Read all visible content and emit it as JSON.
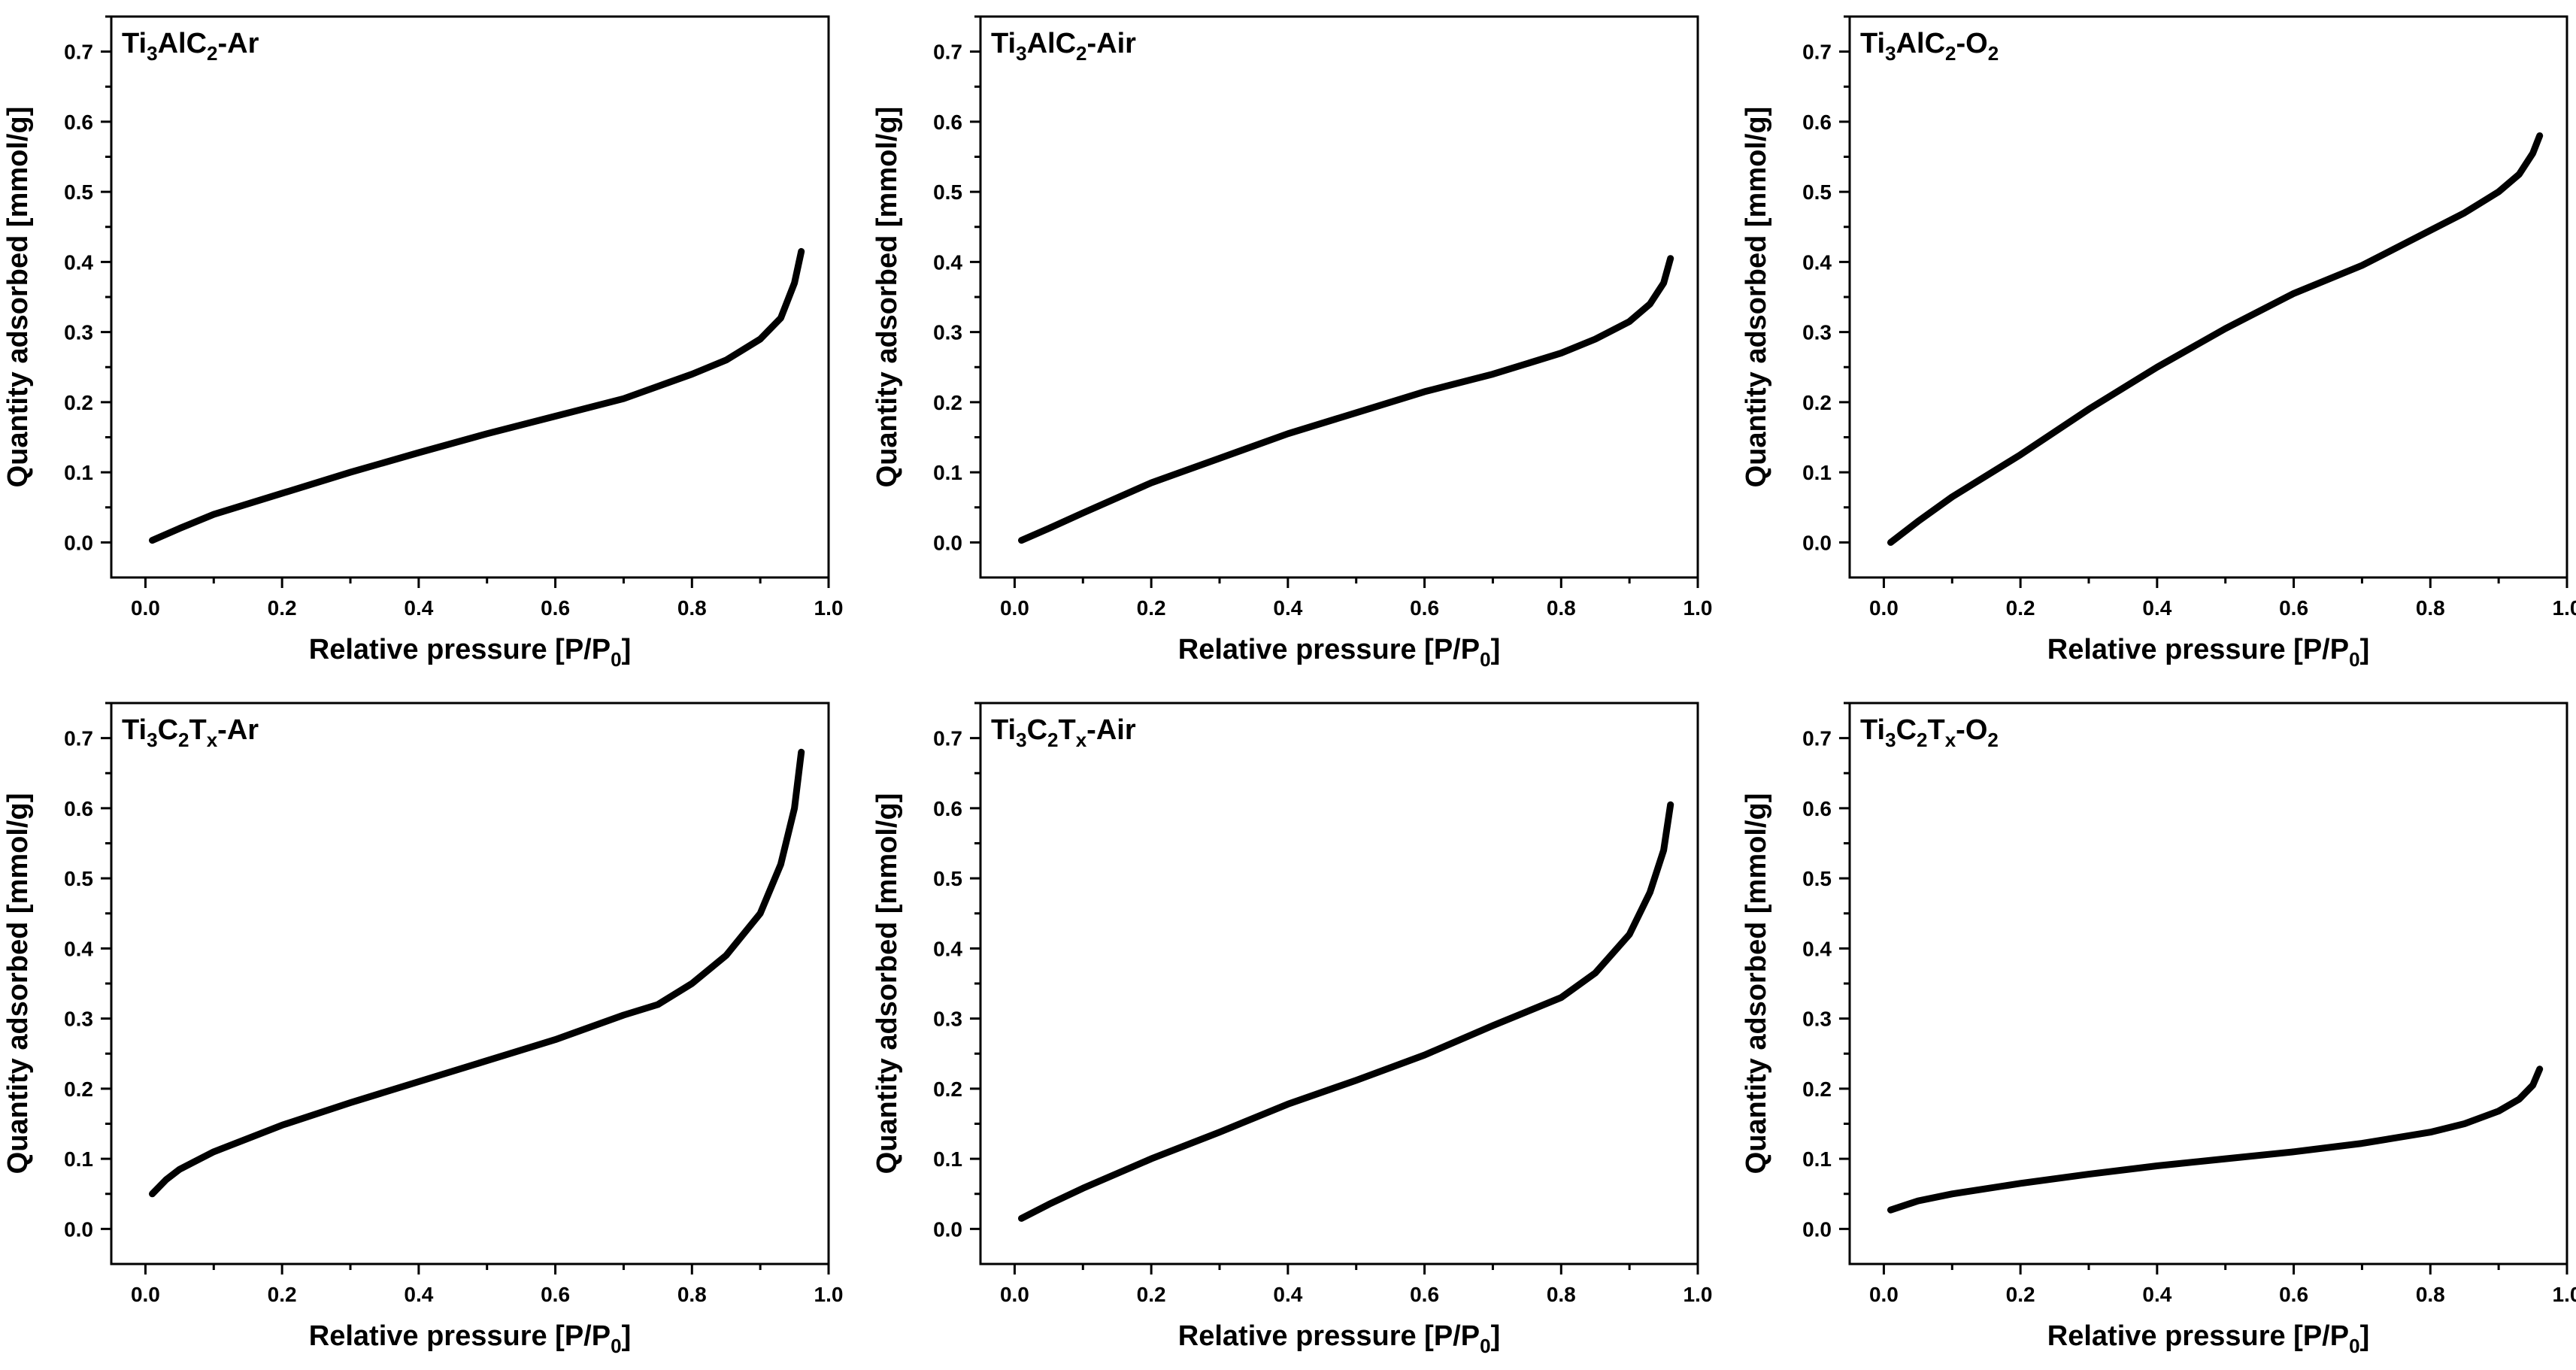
{
  "chart_data": [
    {
      "type": "line",
      "title": "Ti3AlC2-Ar",
      "title_parts": {
        "base": "Ti",
        "sub1": "3",
        "mid": "AlC",
        "sub2": "2",
        "suffix": "-Ar"
      },
      "xlabel": {
        "text": "Relative pressure [P/P",
        "sub": "0",
        "close": "]"
      },
      "ylabel": "Quantity adsorbed [mmol/g]",
      "xlim": [
        -0.05,
        1.0
      ],
      "ylim": [
        -0.05,
        0.75
      ],
      "xticks": [
        "0.0",
        "0.2",
        "0.4",
        "0.6",
        "0.8",
        "1.0"
      ],
      "yticks": [
        "0.0",
        "0.1",
        "0.2",
        "0.3",
        "0.4",
        "0.5",
        "0.6",
        "0.7"
      ],
      "series": [
        {
          "name": "Ti3AlC2-Ar",
          "color": "#000000",
          "x": [
            0.01,
            0.05,
            0.1,
            0.2,
            0.3,
            0.4,
            0.5,
            0.6,
            0.7,
            0.8,
            0.85,
            0.9,
            0.93,
            0.95,
            0.96
          ],
          "y": [
            0.003,
            0.02,
            0.04,
            0.07,
            0.1,
            0.128,
            0.155,
            0.18,
            0.205,
            0.24,
            0.26,
            0.29,
            0.32,
            0.37,
            0.415
          ]
        }
      ]
    },
    {
      "type": "line",
      "title": "Ti3AlC2-Air",
      "title_parts": {
        "base": "Ti",
        "sub1": "3",
        "mid": "AlC",
        "sub2": "2",
        "suffix": "-Air"
      },
      "xlabel": {
        "text": "Relative pressure [P/P",
        "sub": "0",
        "close": "]"
      },
      "ylabel": "Quantity adsorbed [mmol/g]",
      "xlim": [
        -0.05,
        1.0
      ],
      "ylim": [
        -0.05,
        0.75
      ],
      "xticks": [
        "0.0",
        "0.2",
        "0.4",
        "0.6",
        "0.8",
        "1.0"
      ],
      "yticks": [
        "0.0",
        "0.1",
        "0.2",
        "0.3",
        "0.4",
        "0.5",
        "0.6",
        "0.7"
      ],
      "series": [
        {
          "name": "Ti3AlC2-Air",
          "color": "#000000",
          "x": [
            0.01,
            0.05,
            0.1,
            0.2,
            0.3,
            0.4,
            0.5,
            0.6,
            0.7,
            0.8,
            0.85,
            0.9,
            0.93,
            0.95,
            0.96
          ],
          "y": [
            0.003,
            0.02,
            0.042,
            0.085,
            0.12,
            0.155,
            0.185,
            0.215,
            0.24,
            0.27,
            0.29,
            0.315,
            0.34,
            0.37,
            0.405
          ]
        }
      ]
    },
    {
      "type": "line",
      "title": "Ti3AlC2-O2",
      "title_parts": {
        "base": "Ti",
        "sub1": "3",
        "mid": "AlC",
        "sub2": "2",
        "suffix": "-O",
        "sub3": "2"
      },
      "xlabel": {
        "text": "Relative pressure [P/P",
        "sub": "0",
        "close": "]"
      },
      "ylabel": "Quantity adsorbed [mmol/g]",
      "xlim": [
        -0.05,
        1.0
      ],
      "ylim": [
        -0.05,
        0.75
      ],
      "xticks": [
        "0.0",
        "0.2",
        "0.4",
        "0.6",
        "0.8",
        "1.0"
      ],
      "yticks": [
        "0.0",
        "0.1",
        "0.2",
        "0.3",
        "0.4",
        "0.5",
        "0.6",
        "0.7"
      ],
      "series": [
        {
          "name": "Ti3AlC2-O2",
          "color": "#000000",
          "x": [
            0.01,
            0.05,
            0.1,
            0.2,
            0.3,
            0.4,
            0.5,
            0.6,
            0.7,
            0.8,
            0.85,
            0.9,
            0.93,
            0.95,
            0.96
          ],
          "y": [
            0.0,
            0.03,
            0.065,
            0.125,
            0.19,
            0.25,
            0.305,
            0.355,
            0.395,
            0.445,
            0.47,
            0.5,
            0.525,
            0.555,
            0.58
          ]
        }
      ]
    },
    {
      "type": "line",
      "title": "Ti3C2Tx-Ar",
      "title_parts": {
        "base": "Ti",
        "sub1": "3",
        "mid": "C",
        "sub2": "2",
        "mid2": "T",
        "sub3": "x",
        "suffix": "-Ar"
      },
      "xlabel": {
        "text": "Relative pressure [P/P",
        "sub": "0",
        "close": "]"
      },
      "ylabel": "Quantity adsorbed [mmol/g]",
      "xlim": [
        -0.05,
        1.0
      ],
      "ylim": [
        -0.05,
        0.75
      ],
      "xticks": [
        "0.0",
        "0.2",
        "0.4",
        "0.6",
        "0.8",
        "1.0"
      ],
      "yticks": [
        "0.0",
        "0.1",
        "0.2",
        "0.3",
        "0.4",
        "0.5",
        "0.6",
        "0.7"
      ],
      "series": [
        {
          "name": "Ti3C2Tx-Ar",
          "color": "#000000",
          "x": [
            0.01,
            0.03,
            0.05,
            0.1,
            0.2,
            0.3,
            0.4,
            0.5,
            0.6,
            0.7,
            0.75,
            0.8,
            0.85,
            0.9,
            0.93,
            0.95,
            0.96
          ],
          "y": [
            0.05,
            0.07,
            0.085,
            0.11,
            0.148,
            0.18,
            0.21,
            0.24,
            0.27,
            0.305,
            0.32,
            0.35,
            0.39,
            0.45,
            0.52,
            0.6,
            0.68
          ]
        }
      ]
    },
    {
      "type": "line",
      "title": "Ti3C2Tx-Air",
      "title_parts": {
        "base": "Ti",
        "sub1": "3",
        "mid": "C",
        "sub2": "2",
        "mid2": "T",
        "sub3": "x",
        "suffix": "-Air"
      },
      "xlabel": {
        "text": "Relative pressure [P/P",
        "sub": "0",
        "close": "]"
      },
      "ylabel": "Quantity adsorbed [mmol/g]",
      "xlim": [
        -0.05,
        1.0
      ],
      "ylim": [
        -0.05,
        0.75
      ],
      "xticks": [
        "0.0",
        "0.2",
        "0.4",
        "0.6",
        "0.8",
        "1.0"
      ],
      "yticks": [
        "0.0",
        "0.1",
        "0.2",
        "0.3",
        "0.4",
        "0.5",
        "0.6",
        "0.7"
      ],
      "series": [
        {
          "name": "Ti3C2Tx-Air",
          "color": "#000000",
          "x": [
            0.01,
            0.05,
            0.1,
            0.2,
            0.3,
            0.4,
            0.5,
            0.6,
            0.7,
            0.8,
            0.85,
            0.9,
            0.93,
            0.95,
            0.96
          ],
          "y": [
            0.015,
            0.035,
            0.058,
            0.1,
            0.138,
            0.178,
            0.212,
            0.248,
            0.29,
            0.33,
            0.365,
            0.42,
            0.48,
            0.54,
            0.605
          ]
        }
      ]
    },
    {
      "type": "line",
      "title": "Ti3C2Tx-O2",
      "title_parts": {
        "base": "Ti",
        "sub1": "3",
        "mid": "C",
        "sub2": "2",
        "mid2": "T",
        "sub3": "x",
        "suffix": "-O",
        "sub4": "2"
      },
      "xlabel": {
        "text": "Relative pressure [P/P",
        "sub": "0",
        "close": "]"
      },
      "ylabel": "Quantity adsorbed [mmol/g]",
      "xlim": [
        -0.05,
        1.0
      ],
      "ylim": [
        -0.05,
        0.75
      ],
      "xticks": [
        "0.0",
        "0.2",
        "0.4",
        "0.6",
        "0.8",
        "1.0"
      ],
      "yticks": [
        "0.0",
        "0.1",
        "0.2",
        "0.3",
        "0.4",
        "0.5",
        "0.6",
        "0.7"
      ],
      "series": [
        {
          "name": "Ti3C2Tx-O2",
          "color": "#000000",
          "x": [
            0.01,
            0.05,
            0.1,
            0.2,
            0.3,
            0.4,
            0.5,
            0.6,
            0.7,
            0.8,
            0.85,
            0.9,
            0.93,
            0.95,
            0.96
          ],
          "y": [
            0.027,
            0.04,
            0.05,
            0.065,
            0.078,
            0.09,
            0.1,
            0.11,
            0.122,
            0.138,
            0.15,
            0.168,
            0.185,
            0.205,
            0.228
          ]
        }
      ]
    }
  ]
}
